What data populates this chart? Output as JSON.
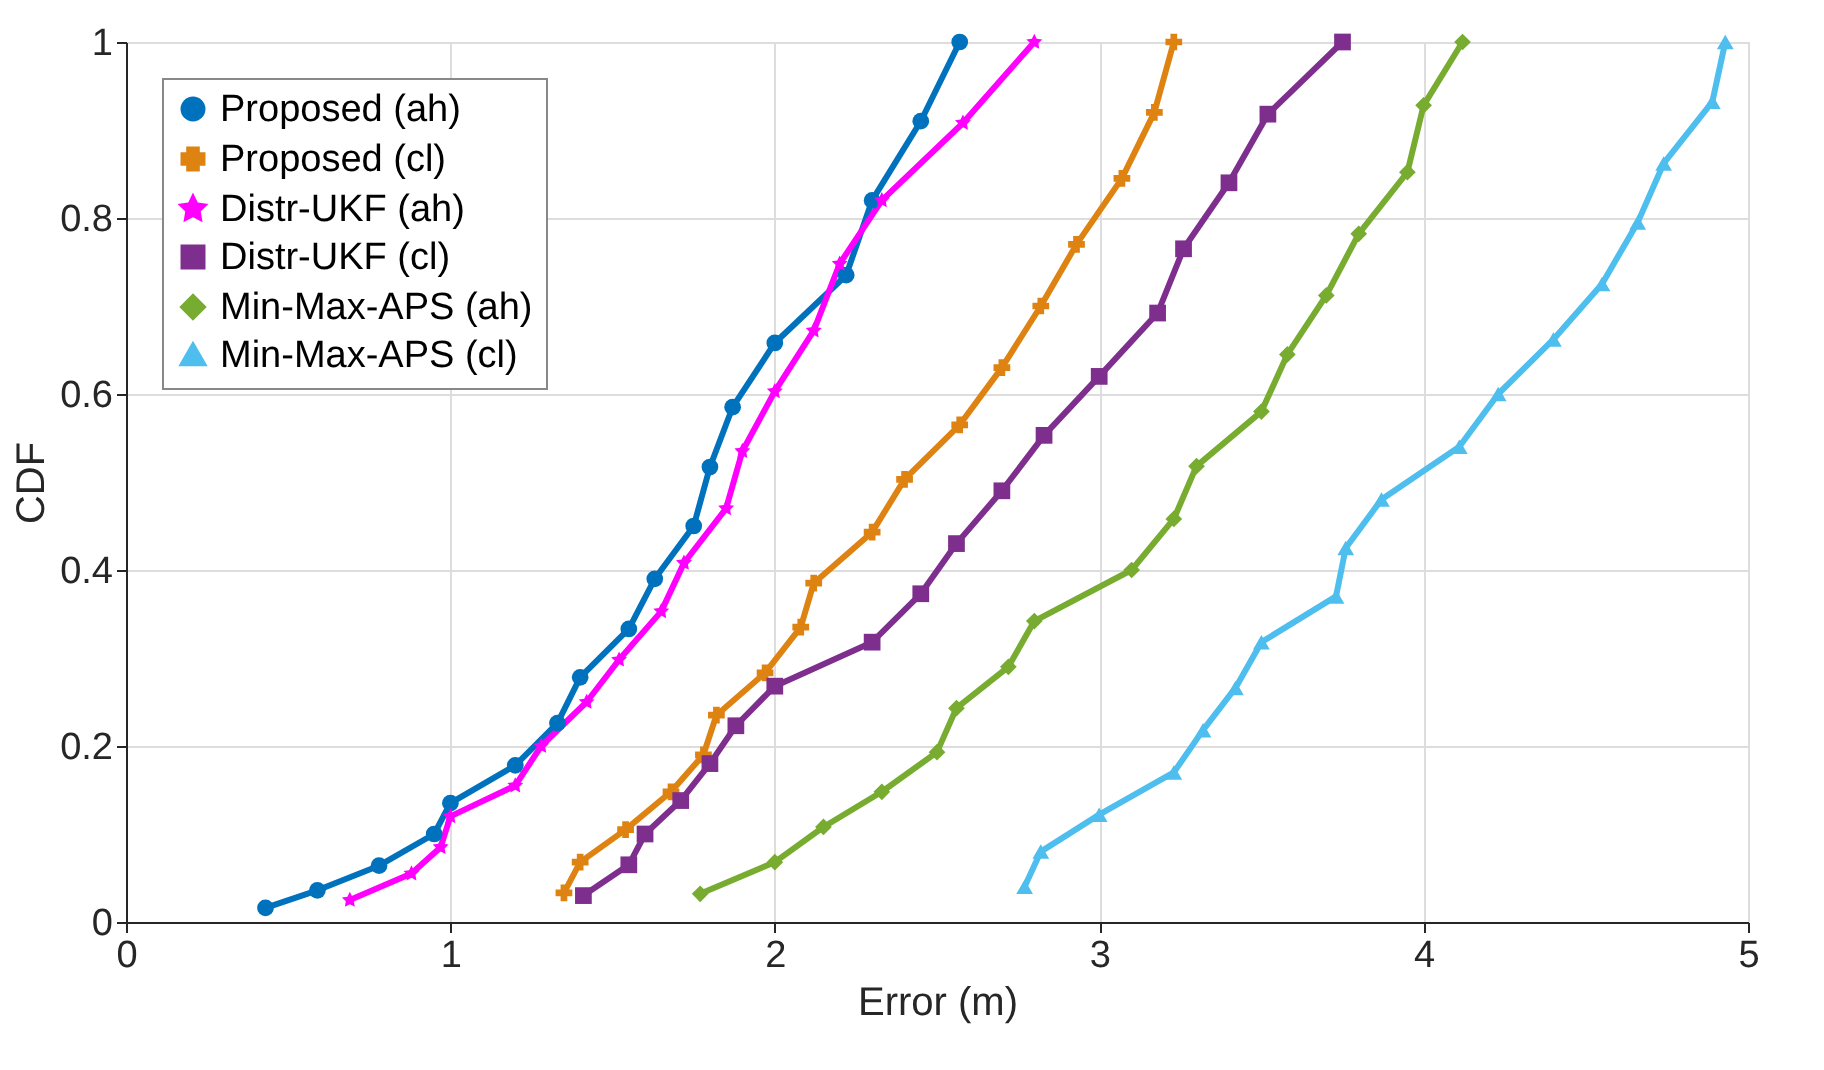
{
  "chart_data": {
    "type": "line",
    "xlabel": "Error (m)",
    "ylabel": "CDF",
    "xlim": [
      0,
      5
    ],
    "xticks": [
      0,
      1,
      2,
      3,
      4,
      5
    ],
    "ylim": [
      0,
      1
    ],
    "yticks": [
      0,
      0.2,
      0.4,
      0.6,
      0.8,
      1
    ],
    "grid": true,
    "legend": "top left",
    "line_style": "solid",
    "series": [
      {
        "name": "Proposed (ah)",
        "color": "#0072bd",
        "marker": "circle",
        "x": [
          0.43,
          0.59,
          0.78,
          0.95,
          1.0,
          1.2,
          1.33,
          1.4,
          1.55,
          1.63,
          1.75,
          1.8,
          1.87,
          2.0,
          2.22,
          2.3,
          2.45,
          2.57
        ],
        "values": [
          0.016,
          0.036,
          0.064,
          0.1,
          0.135,
          0.178,
          0.226,
          0.278,
          0.333,
          0.39,
          0.45,
          0.517,
          0.585,
          0.658,
          0.735,
          0.82,
          0.91,
          1.0
        ]
      },
      {
        "name": "Proposed (cl)",
        "color": "#de8311",
        "marker": "cross",
        "x": [
          1.35,
          1.4,
          1.54,
          1.68,
          1.78,
          1.82,
          1.97,
          2.08,
          2.12,
          2.3,
          2.4,
          2.57,
          2.7,
          2.82,
          2.93,
          3.07,
          3.17,
          3.23
        ],
        "values": [
          0.033,
          0.068,
          0.105,
          0.148,
          0.19,
          0.235,
          0.283,
          0.335,
          0.385,
          0.443,
          0.503,
          0.565,
          0.63,
          0.7,
          0.77,
          0.845,
          0.92,
          1.0
        ]
      },
      {
        "name": "Distr-UKF (ah)",
        "color": "#ff00ff",
        "marker": "star",
        "x": [
          0.69,
          0.88,
          0.97,
          1.0,
          1.2,
          1.28,
          1.42,
          1.52,
          1.65,
          1.72,
          1.85,
          1.9,
          2.0,
          2.12,
          2.2,
          2.33,
          2.58,
          2.8
        ],
        "values": [
          0.025,
          0.055,
          0.085,
          0.12,
          0.155,
          0.2,
          0.25,
          0.298,
          0.353,
          0.408,
          0.47,
          0.535,
          0.603,
          0.672,
          0.748,
          0.82,
          0.908,
          1.0
        ]
      },
      {
        "name": "Distr-UKF (cl)",
        "color": "#7e2f8e",
        "marker": "square",
        "x": [
          1.41,
          1.55,
          1.6,
          1.71,
          1.8,
          1.88,
          2.0,
          2.3,
          2.45,
          2.56,
          2.7,
          2.83,
          3.0,
          3.18,
          3.26,
          3.4,
          3.52,
          3.75
        ],
        "values": [
          0.03,
          0.065,
          0.1,
          0.138,
          0.18,
          0.223,
          0.268,
          0.318,
          0.373,
          0.43,
          0.49,
          0.553,
          0.62,
          0.692,
          0.765,
          0.84,
          0.918,
          1.0
        ]
      },
      {
        "name": "Min-Max-APS (ah)",
        "color": "#77ac30",
        "marker": "diamond",
        "x": [
          1.77,
          2.0,
          2.15,
          2.33,
          2.5,
          2.56,
          2.72,
          2.8,
          3.1,
          3.23,
          3.3,
          3.5,
          3.58,
          3.7,
          3.8,
          3.95,
          4.0,
          4.12
        ],
        "values": [
          0.032,
          0.068,
          0.108,
          0.148,
          0.193,
          0.243,
          0.29,
          0.342,
          0.4,
          0.458,
          0.518,
          0.58,
          0.645,
          0.712,
          0.782,
          0.852,
          0.928,
          1.0
        ]
      },
      {
        "name": "Min-Max-APS (cl)",
        "color": "#4dbeee",
        "marker": "triangle",
        "x": [
          2.77,
          2.82,
          3.0,
          3.23,
          3.32,
          3.42,
          3.5,
          3.73,
          3.76,
          3.87,
          4.11,
          4.23,
          4.4,
          4.55,
          4.66,
          4.74,
          4.89,
          4.93
        ],
        "values": [
          0.04,
          0.08,
          0.122,
          0.17,
          0.218,
          0.266,
          0.318,
          0.37,
          0.425,
          0.48,
          0.54,
          0.6,
          0.662,
          0.725,
          0.795,
          0.862,
          0.932,
          1.0
        ]
      }
    ]
  }
}
